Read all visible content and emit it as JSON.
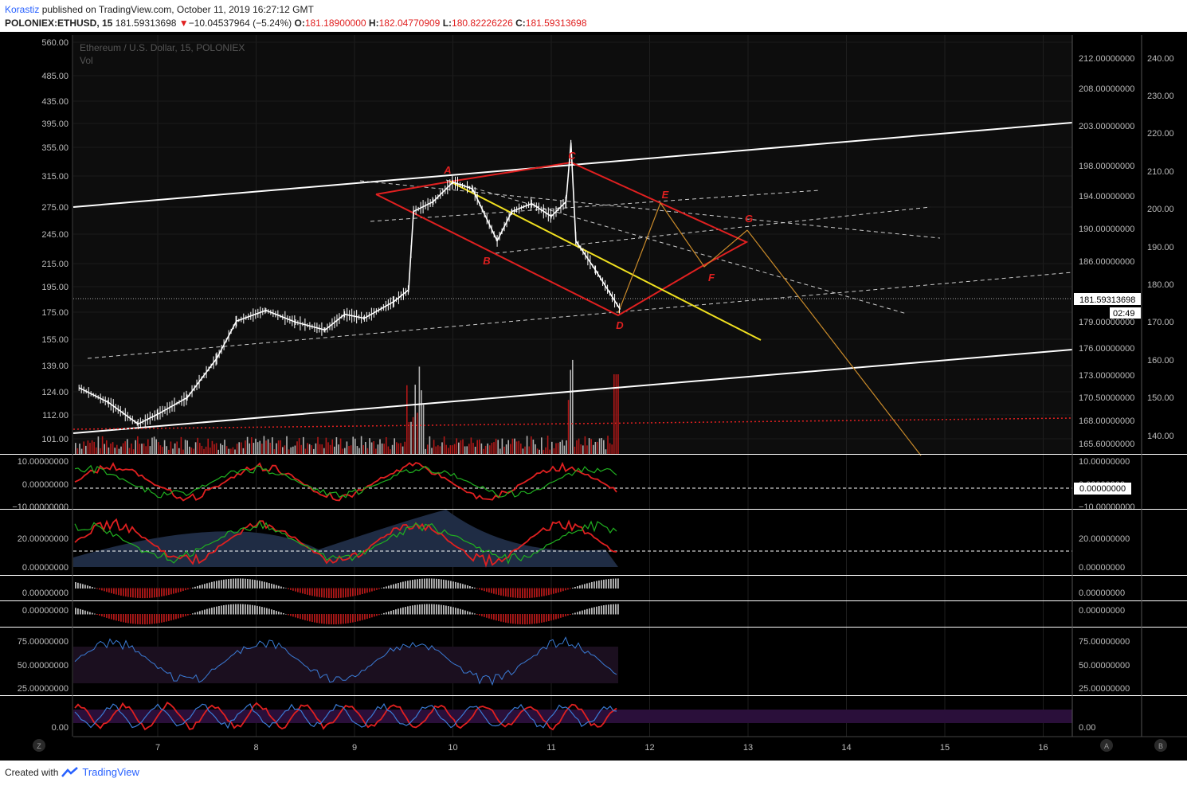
{
  "header": {
    "author": "Korastiz",
    "published_text": "published on TradingView.com, October 11, 2019 16:27:12 GMT",
    "symbol": "POLONIEX:ETHUSD, 15",
    "last": "181.59313698",
    "change_arrow": "▼",
    "change": "−10.04537964 (−5.24%)",
    "o_label": "O:",
    "o_value": "181.18900000",
    "h_label": "H:",
    "h_value": "182.04770909",
    "l_label": "L:",
    "l_value": "180.82226226",
    "c_label": "C:",
    "c_value": "181.59313698"
  },
  "legend": {
    "title": "Ethereum / U.S. Dollar, 15, POLONIEX",
    "vol": "Vol"
  },
  "footer": {
    "created_with": "Created with",
    "brand": "TradingView"
  },
  "chart_data": {
    "type": "line",
    "title": "Ethereum / U.S. Dollar, 15, POLONIEX",
    "x_ticks": [
      "7",
      "8",
      "9",
      "10",
      "11",
      "12",
      "13",
      "14",
      "15",
      "16"
    ],
    "left_y_ticks": [
      "560.00",
      "485.00",
      "435.00",
      "395.00",
      "355.00",
      "315.00",
      "275.00",
      "245.00",
      "215.00",
      "195.00",
      "175.00",
      "155.00",
      "139.00",
      "124.00",
      "112.00",
      "101.00"
    ],
    "right_y_ticks": [
      "212.00000000",
      "208.00000000",
      "203.00000000",
      "198.00000000",
      "194.00000000",
      "190.00000000",
      "186.00000000",
      "179.00000000",
      "176.00000000",
      "173.00000000",
      "170.50000000",
      "168.00000000",
      "165.60000000"
    ],
    "far_right_y_ticks": [
      "240.00",
      "230.00",
      "220.00",
      "210.00",
      "200.00",
      "190.00",
      "180.00",
      "170.00",
      "160.00",
      "150.00",
      "140.00"
    ],
    "price_label": "181.59313698",
    "countdown": "02:49",
    "pattern_labels": [
      "A",
      "B",
      "C",
      "D",
      "E",
      "F",
      "G"
    ],
    "price_series": {
      "name": "",
      "x": [
        6.2,
        6.5,
        6.8,
        7.0,
        7.3,
        7.6,
        7.8,
        8.1,
        8.4,
        8.7,
        8.9,
        9.1,
        9.4,
        9.55,
        9.6,
        9.8,
        10.0,
        10.2,
        10.45,
        10.6,
        10.8,
        11.0,
        11.15,
        11.2,
        11.25,
        11.45,
        11.7
      ],
      "y": [
        172.5,
        171.0,
        168.8,
        169.8,
        171.5,
        175.5,
        179.3,
        180.4,
        179.2,
        178.4,
        180.0,
        179.6,
        181.3,
        182.5,
        190.5,
        191.5,
        193.5,
        192.8,
        187.5,
        190.5,
        191.3,
        190.0,
        191.5,
        197.5,
        187.5,
        184.5,
        180.5
      ]
    },
    "pane_ticks": {
      "pane1": [
        "10.00000000",
        "0.00000000",
        "−10.00000000"
      ],
      "pane1_marker": "0.00000000",
      "pane2": [
        "20.00000000",
        "0.00000000"
      ],
      "pane3": [
        "0.00000000"
      ],
      "pane4": [
        "0.00000000"
      ],
      "pane5": [
        "75.00000000",
        "50.00000000",
        "25.00000000"
      ],
      "pane6": [
        "0.00"
      ]
    },
    "scale_buttons": [
      "Z",
      "A",
      "B"
    ],
    "colors": {
      "background": "#000000",
      "price": "#ffffff",
      "channel": "#ffffff",
      "pattern": "#e02020",
      "trend": "#f0e020",
      "projection": "#c98a2a"
    }
  }
}
